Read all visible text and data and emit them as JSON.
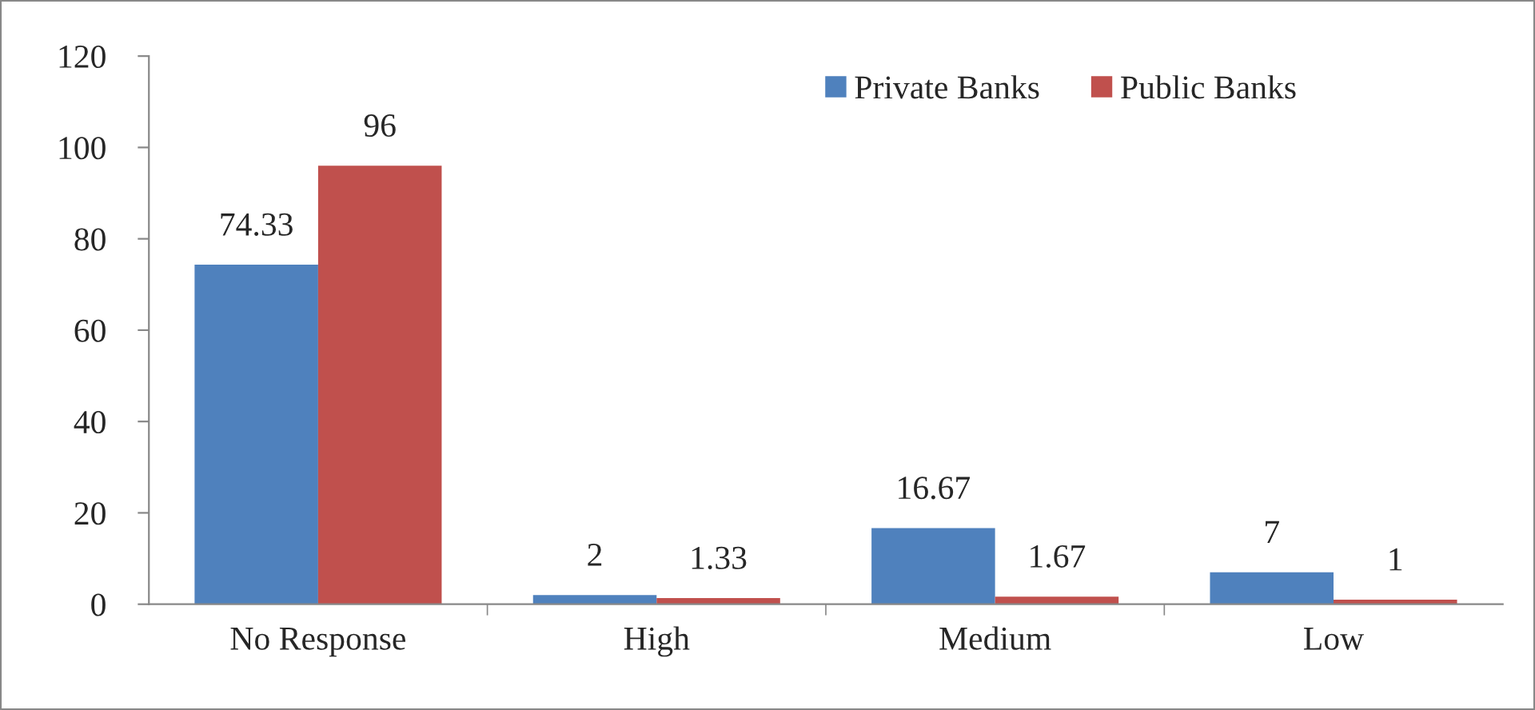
{
  "chart_data": {
    "type": "bar",
    "categories": [
      "No Response",
      "High",
      "Medium",
      "Low"
    ],
    "series": [
      {
        "name": "Private Banks",
        "color": "#4f81bd",
        "values": [
          74.33,
          2,
          16.67,
          7
        ]
      },
      {
        "name": "Public Banks",
        "color": "#c0504d",
        "values": [
          96,
          1.33,
          1.67,
          1
        ]
      }
    ],
    "ylim": [
      0,
      120
    ],
    "yticks": [
      0,
      20,
      40,
      60,
      80,
      100,
      120
    ],
    "data_labels": true,
    "legend": "top right",
    "grid": false
  }
}
